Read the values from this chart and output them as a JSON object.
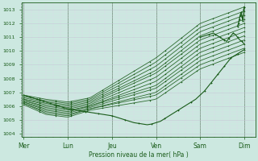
{
  "xlabel": "Pression niveau de la mer( hPa )",
  "ylim": [
    1003.8,
    1013.5
  ],
  "yticks": [
    1004,
    1005,
    1006,
    1007,
    1008,
    1009,
    1010,
    1011,
    1012,
    1013
  ],
  "day_labels": [
    "Mer",
    "Lun",
    "Jeu",
    "Ven",
    "Sam",
    "Dim"
  ],
  "day_positions": [
    0,
    1,
    2,
    3,
    4,
    5
  ],
  "xlim": [
    -0.05,
    5.25
  ],
  "bg_color": "#cce8e0",
  "grid_major_color": "#c8c8d8",
  "grid_minor_color": "#dcdce8",
  "line_color": "#1a5c1a",
  "ensemble_lines": [
    [
      1006.8,
      1006.5,
      1006.3,
      1006.6,
      1009.5,
      1012.0,
      1013.2
    ],
    [
      1006.7,
      1006.4,
      1006.2,
      1006.5,
      1009.2,
      1011.7,
      1012.9
    ],
    [
      1006.6,
      1006.3,
      1006.1,
      1006.4,
      1008.9,
      1011.4,
      1012.6
    ],
    [
      1006.5,
      1006.2,
      1006.0,
      1006.3,
      1008.6,
      1011.1,
      1012.3
    ],
    [
      1006.5,
      1006.1,
      1005.9,
      1006.2,
      1008.4,
      1010.8,
      1012.0
    ],
    [
      1006.4,
      1006.0,
      1005.8,
      1006.1,
      1008.1,
      1010.5,
      1011.7
    ],
    [
      1006.4,
      1005.9,
      1005.7,
      1006.0,
      1007.8,
      1010.2,
      1011.4
    ],
    [
      1006.3,
      1005.8,
      1005.6,
      1006.0,
      1007.5,
      1009.9,
      1011.1
    ],
    [
      1006.3,
      1005.7,
      1005.5,
      1005.9,
      1007.3,
      1009.6,
      1010.8
    ],
    [
      1006.2,
      1005.6,
      1005.4,
      1005.8,
      1007.0,
      1009.3,
      1010.5
    ],
    [
      1006.2,
      1005.5,
      1005.3,
      1005.8,
      1006.8,
      1009.0,
      1010.2
    ],
    [
      1006.1,
      1005.4,
      1005.2,
      1005.7,
      1006.5,
      1008.7,
      1009.9
    ]
  ],
  "main_x": [
    0.0,
    0.05,
    0.1,
    0.15,
    0.2,
    0.25,
    0.3,
    0.35,
    0.4,
    0.45,
    0.5,
    0.55,
    0.6,
    0.65,
    0.7,
    0.75,
    0.8,
    0.85,
    0.9,
    0.95,
    1.0,
    1.1,
    1.2,
    1.3,
    1.4,
    1.5,
    1.6,
    1.7,
    1.8,
    1.9,
    2.0,
    2.1,
    2.2,
    2.3,
    2.4,
    2.5,
    2.6,
    2.7,
    2.8,
    2.9,
    3.0,
    3.1,
    3.2,
    3.3,
    3.4,
    3.5,
    3.6,
    3.7,
    3.8,
    3.9,
    4.0,
    4.1,
    4.15,
    4.2,
    4.25,
    4.3,
    4.35,
    4.4,
    4.45,
    4.5,
    4.55,
    4.6,
    4.65,
    4.7,
    4.75,
    4.8,
    4.85,
    4.9,
    4.95,
    5.0
  ],
  "main_y": [
    1006.8,
    1006.75,
    1006.7,
    1006.65,
    1006.6,
    1006.55,
    1006.5,
    1006.45,
    1006.4,
    1006.35,
    1006.3,
    1006.25,
    1006.2,
    1006.15,
    1006.1,
    1006.05,
    1006.0,
    1005.95,
    1005.9,
    1005.85,
    1005.8,
    1005.75,
    1005.7,
    1005.65,
    1005.6,
    1005.55,
    1005.5,
    1005.45,
    1005.4,
    1005.35,
    1005.3,
    1005.2,
    1005.1,
    1005.0,
    1004.9,
    1004.8,
    1004.75,
    1004.7,
    1004.65,
    1004.7,
    1004.8,
    1004.9,
    1005.1,
    1005.3,
    1005.5,
    1005.7,
    1005.9,
    1006.1,
    1006.3,
    1006.5,
    1006.8,
    1007.1,
    1007.3,
    1007.5,
    1007.7,
    1007.9,
    1008.1,
    1008.3,
    1008.5,
    1008.7,
    1008.9,
    1009.1,
    1009.3,
    1009.5,
    1009.6,
    1009.7,
    1009.8,
    1009.9,
    1010.0,
    1010.1
  ],
  "extra_line_x": [
    4.0,
    4.1,
    4.2,
    4.3,
    4.35,
    4.4,
    4.45,
    4.5,
    4.55,
    4.6,
    4.65,
    4.7,
    4.75,
    4.8,
    4.85,
    4.9,
    4.95,
    5.0
  ],
  "extra_line_y": [
    1011.0,
    1011.1,
    1011.2,
    1011.3,
    1011.2,
    1011.1,
    1011.0,
    1010.9,
    1010.8,
    1010.7,
    1010.9,
    1011.1,
    1011.3,
    1011.2,
    1011.0,
    1010.8,
    1010.7,
    1010.5
  ],
  "spike_x": [
    4.85,
    4.87,
    4.89,
    4.91,
    4.93,
    4.95,
    4.97,
    4.99,
    5.0
  ],
  "spike_y": [
    1011.8,
    1012.0,
    1012.3,
    1012.6,
    1012.8,
    1012.5,
    1012.2,
    1013.0,
    1013.2
  ]
}
